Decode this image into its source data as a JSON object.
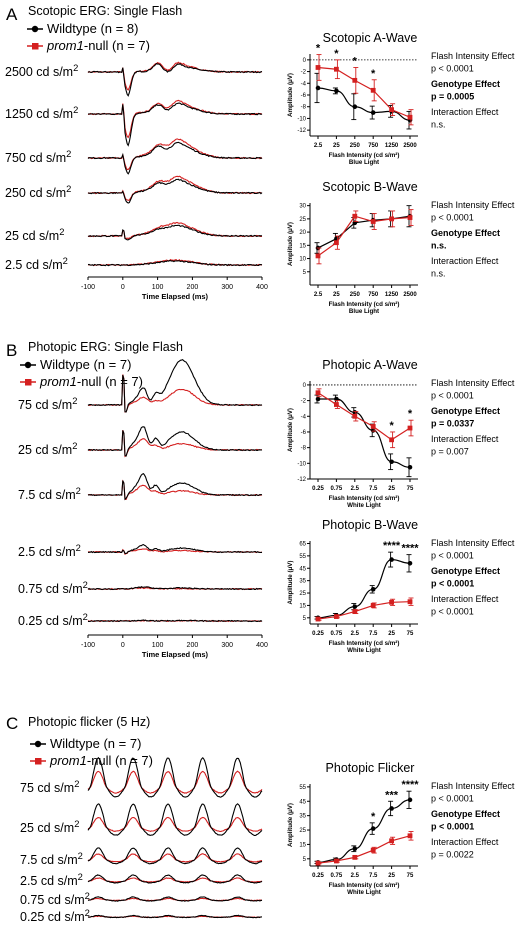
{
  "colors": {
    "wildtype": "#000000",
    "prom1": "#d42020"
  },
  "panels": [
    {
      "letter": "A",
      "title": "Scotopic ERG: Single Flash",
      "legend": [
        {
          "label_main": "Wildtype (n = 8)",
          "label_italic": "",
          "label_rest": ""
        },
        {
          "label_main": "",
          "label_italic": "prom1",
          "label_rest": "-null (n = 7)"
        }
      ],
      "trace_labels": [
        "2500 cd s/m²",
        "1250 cd s/m²",
        "750 cd s/m²",
        "250 cd s/m²",
        "25 cd s/m²",
        "2.5 cd s/m²"
      ],
      "time_axis": {
        "ticks": [
          "-100",
          "0",
          "100",
          "200",
          "300",
          "400"
        ],
        "label": "Time Elapsed (ms)"
      }
    },
    {
      "letter": "B",
      "title": "Photopic ERG: Single Flash",
      "legend": [
        {
          "label_main": "Wildtype (n = 7)",
          "label_italic": "",
          "label_rest": ""
        },
        {
          "label_main": "",
          "label_italic": "prom1",
          "label_rest": "-null (n = 7)"
        }
      ],
      "trace_labels": [
        "75 cd s/m²",
        "25 cd s/m²",
        "7.5 cd s/m²",
        "2.5 cd s/m²",
        "0.75 cd s/m²",
        "0.25 cd s/m²"
      ],
      "time_axis": {
        "ticks": [
          "-100",
          "0",
          "100",
          "200",
          "300",
          "400"
        ],
        "label": "Time Elapsed (ms)"
      }
    },
    {
      "letter": "C",
      "title": "Photopic flicker (5 Hz)",
      "legend": [
        {
          "label_main": "Wildtype (n = 7)",
          "label_italic": "",
          "label_rest": ""
        },
        {
          "label_main": "",
          "label_italic": "prom1",
          "label_rest": "-null (n = 7)"
        }
      ],
      "trace_labels": [
        "75 cd s/m²",
        "25 cd s/m²",
        "7.5 cd s/m²",
        "2.5 cd s/m²",
        "0.75 cd s/m²",
        "0.25 cd s/m²"
      ]
    }
  ],
  "chart_data": [
    {
      "type": "line",
      "title": "Scotopic A-Wave",
      "xlabel": "Flash Intensity (cd s/m²)",
      "xsublabel": "Blue Light",
      "ylabel": "Amplitude (μV)",
      "categories": [
        "2.5",
        "25",
        "250",
        "750",
        "1250",
        "2500"
      ],
      "ylim": [
        -13,
        1
      ],
      "yticks": [
        0,
        -2,
        -4,
        -6,
        -8,
        -10,
        -12
      ],
      "dotted_zero": true,
      "series": [
        {
          "name": "Wildtype",
          "values": [
            -4.8,
            -5.3,
            -8,
            -9,
            -8.8,
            -10.3
          ],
          "errors": [
            2.5,
            0.5,
            2.2,
            1.1,
            1.0,
            1.5
          ]
        },
        {
          "name": "prom1-null",
          "values": [
            -1.3,
            -1.6,
            -3.5,
            -5.2,
            -8.5,
            -9.8
          ],
          "errors": [
            2.2,
            1.6,
            2.2,
            1.8,
            1.0,
            1.3
          ]
        }
      ],
      "significance": [
        {
          "category": "2.5",
          "label": "*"
        },
        {
          "category": "25",
          "label": "*"
        },
        {
          "category": "250",
          "label": "*"
        },
        {
          "category": "750",
          "label": "*"
        }
      ],
      "stats": [
        {
          "text": "Flash Intensity Effect",
          "bold": false
        },
        {
          "text": "p < 0.0001",
          "bold": false
        },
        {
          "text": "Genotype Effect",
          "bold": true
        },
        {
          "text": "p = 0.0005",
          "bold": true
        },
        {
          "text": "Interaction Effect",
          "bold": false
        },
        {
          "text": "n.s.",
          "bold": false
        }
      ]
    },
    {
      "type": "line",
      "title": "Scotopic B-Wave",
      "xlabel": "Flash Intensity (cd s/m²)",
      "xsublabel": "Blue Light",
      "ylabel": "Amplitude (μV)",
      "categories": [
        "2.5",
        "25",
        "250",
        "750",
        "1250",
        "2500"
      ],
      "ylim": [
        0,
        31
      ],
      "yticks": [
        5,
        10,
        15,
        20,
        25,
        30
      ],
      "dotted_zero": false,
      "series": [
        {
          "name": "Wildtype",
          "values": [
            14,
            17.5,
            23.5,
            24.5,
            25,
            26
          ],
          "errors": [
            2,
            2,
            2,
            2.5,
            3,
            4
          ]
        },
        {
          "name": "prom1-null",
          "values": [
            11,
            16,
            26,
            24,
            25,
            25.5
          ],
          "errors": [
            3,
            2.5,
            2,
            3,
            3,
            3
          ]
        }
      ],
      "significance": [],
      "stats": [
        {
          "text": "Flash Intensity Effect",
          "bold": false
        },
        {
          "text": "p < 0.0001",
          "bold": false
        },
        {
          "text": "Genotype Effect",
          "bold": true
        },
        {
          "text": "n.s.",
          "bold": true
        },
        {
          "text": "Interaction Effect",
          "bold": false
        },
        {
          "text": "n.s.",
          "bold": false
        }
      ]
    },
    {
      "type": "line",
      "title": "Photopic A-Wave",
      "xlabel": "Flash Intensity (cd s/m²)",
      "xsublabel": "White Light",
      "ylabel": "Amplitude (μV)",
      "categories": [
        "0.25",
        "0.75",
        "2.5",
        "7.5",
        "25",
        "75"
      ],
      "ylim": [
        -12,
        0.5
      ],
      "yticks": [
        0,
        -2,
        -4,
        -6,
        -8,
        -10,
        -12
      ],
      "dotted_zero": true,
      "series": [
        {
          "name": "Wildtype",
          "values": [
            -1.8,
            -1.8,
            -3.5,
            -5.8,
            -9.8,
            -10.5
          ],
          "errors": [
            0.5,
            0.5,
            0.6,
            0.8,
            1.0,
            1.2
          ]
        },
        {
          "name": "prom1-null",
          "values": [
            -1.0,
            -2.5,
            -4.0,
            -5.3,
            -7.0,
            -5.5
          ],
          "errors": [
            0.5,
            0.5,
            0.6,
            0.6,
            1.0,
            1.0
          ]
        }
      ],
      "significance": [
        {
          "category": "25",
          "label": "*"
        },
        {
          "category": "75",
          "label": "*"
        }
      ],
      "stats": [
        {
          "text": "Flash Intensity Effect",
          "bold": false
        },
        {
          "text": "p < 0.0001",
          "bold": false
        },
        {
          "text": "Genotype Effect",
          "bold": true
        },
        {
          "text": "p = 0.0337",
          "bold": true
        },
        {
          "text": "Interaction Effect",
          "bold": false
        },
        {
          "text": "p = 0.007",
          "bold": false
        }
      ]
    },
    {
      "type": "line",
      "title": "Photopic B-Wave",
      "xlabel": "Flash Intensity (cd s/m²)",
      "xsublabel": "White Light",
      "ylabel": "Amplitude (μV)",
      "categories": [
        "0.25",
        "0.75",
        "2.5",
        "7.5",
        "25",
        "75"
      ],
      "ylim": [
        0,
        67
      ],
      "yticks": [
        5,
        15,
        25,
        35,
        45,
        55,
        65
      ],
      "dotted_zero": false,
      "series": [
        {
          "name": "Wildtype",
          "values": [
            5,
            7,
            14,
            28,
            52,
            49
          ],
          "errors": [
            1,
            1.5,
            2.5,
            3,
            6,
            7
          ]
        },
        {
          "name": "prom1-null",
          "values": [
            4,
            6,
            10,
            15,
            17.5,
            18
          ],
          "errors": [
            1,
            1,
            1.5,
            2,
            2.5,
            3
          ]
        }
      ],
      "significance": [
        {
          "category": "25",
          "label": "****"
        },
        {
          "category": "75",
          "label": "****"
        }
      ],
      "stats": [
        {
          "text": "Flash Intensity Effect",
          "bold": false
        },
        {
          "text": "p < 0.0001",
          "bold": false
        },
        {
          "text": "Genotype Effect",
          "bold": true
        },
        {
          "text": "p < 0.0001",
          "bold": true
        },
        {
          "text": "Interaction Effect",
          "bold": false
        },
        {
          "text": "p < 0.0001",
          "bold": false
        }
      ]
    },
    {
      "type": "line",
      "title": "Photopic Flicker",
      "xlabel": "Flash Intensity (cd s/m²)",
      "xsublabel": "White Light",
      "ylabel": "Amplitude (μV)",
      "categories": [
        "0.25",
        "0.75",
        "2.5",
        "7.5",
        "25",
        "75"
      ],
      "ylim": [
        0,
        57
      ],
      "yticks": [
        5,
        15,
        25,
        35,
        45,
        55
      ],
      "dotted_zero": false,
      "series": [
        {
          "name": "Wildtype",
          "values": [
            2.5,
            4.5,
            12,
            26,
            40,
            46
          ],
          "errors": [
            0.8,
            1,
            2,
            4,
            5,
            6
          ]
        },
        {
          "name": "prom1-null",
          "values": [
            2,
            3.5,
            6,
            11,
            17.5,
            21
          ],
          "errors": [
            0.5,
            0.8,
            1,
            2,
            2.5,
            3
          ]
        }
      ],
      "significance": [
        {
          "category": "7.5",
          "label": "*"
        },
        {
          "category": "25",
          "label": "***"
        },
        {
          "category": "75",
          "label": "****"
        }
      ],
      "stats": [
        {
          "text": "Flash Intensity Effect",
          "bold": false
        },
        {
          "text": "p < 0.0001",
          "bold": false
        },
        {
          "text": "Genotype Effect",
          "bold": true
        },
        {
          "text": "p < 0.0001",
          "bold": true
        },
        {
          "text": "Interaction Effect",
          "bold": false
        },
        {
          "text": "p = 0.0022",
          "bold": false
        }
      ]
    }
  ]
}
